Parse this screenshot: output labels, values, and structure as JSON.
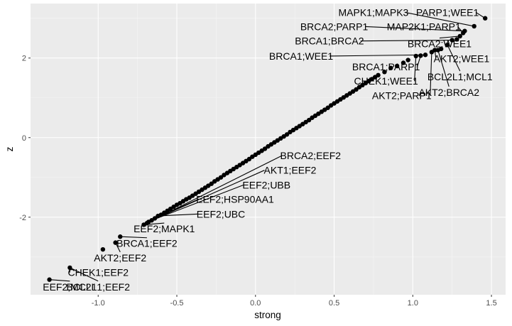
{
  "chart_data": {
    "type": "scatter",
    "xlabel": "strong",
    "ylabel": "z",
    "xlim": [
      -1.43,
      1.59
    ],
    "ylim": [
      -3.95,
      3.37
    ],
    "x_ticks": [
      -1.0,
      -0.5,
      0.0,
      0.5,
      1.0,
      1.5
    ],
    "x_tick_labels": [
      "-1.0",
      "-0.5",
      "0.0",
      "0.5",
      "1.0",
      "1.5"
    ],
    "y_ticks": [
      -2,
      0,
      2
    ],
    "y_tick_labels": [
      "-2",
      "0",
      "2"
    ],
    "grid": true,
    "points": [
      {
        "x": -1.31,
        "y": -3.57
      },
      {
        "x": -1.18,
        "y": -3.27
      },
      {
        "x": -0.97,
        "y": -2.81
      },
      {
        "x": -0.89,
        "y": -2.64
      },
      {
        "x": -0.86,
        "y": -2.49
      },
      {
        "x": -0.71,
        "y": -2.19
      },
      {
        "x": -0.69,
        "y": -2.15
      },
      {
        "x": -0.68,
        "y": -2.12
      },
      {
        "x": -0.66,
        "y": -2.08
      },
      {
        "x": -0.64,
        "y": -2.03
      },
      {
        "x": -0.62,
        "y": -1.97
      },
      {
        "x": -0.6,
        "y": -1.94
      },
      {
        "x": -0.58,
        "y": -1.89
      },
      {
        "x": -0.56,
        "y": -1.84
      },
      {
        "x": -0.54,
        "y": -1.79
      },
      {
        "x": -0.52,
        "y": -1.74
      },
      {
        "x": -0.5,
        "y": -1.69
      },
      {
        "x": -0.48,
        "y": -1.65
      },
      {
        "x": -0.46,
        "y": -1.6
      },
      {
        "x": -0.44,
        "y": -1.55
      },
      {
        "x": -0.42,
        "y": -1.51
      },
      {
        "x": -0.4,
        "y": -1.46
      },
      {
        "x": -0.38,
        "y": -1.41
      },
      {
        "x": -0.36,
        "y": -1.36
      },
      {
        "x": -0.34,
        "y": -1.31
      },
      {
        "x": -0.32,
        "y": -1.26
      },
      {
        "x": -0.3,
        "y": -1.21
      },
      {
        "x": -0.28,
        "y": -1.16
      },
      {
        "x": -0.26,
        "y": -1.1
      },
      {
        "x": -0.24,
        "y": -1.05
      },
      {
        "x": -0.22,
        "y": -1.0
      },
      {
        "x": -0.2,
        "y": -0.94
      },
      {
        "x": -0.18,
        "y": -0.89
      },
      {
        "x": -0.16,
        "y": -0.84
      },
      {
        "x": -0.14,
        "y": -0.79
      },
      {
        "x": -0.12,
        "y": -0.74
      },
      {
        "x": -0.1,
        "y": -0.69
      },
      {
        "x": -0.08,
        "y": -0.64
      },
      {
        "x": -0.06,
        "y": -0.59
      },
      {
        "x": -0.04,
        "y": -0.54
      },
      {
        "x": -0.02,
        "y": -0.48
      },
      {
        "x": 0.0,
        "y": -0.43
      },
      {
        "x": 0.02,
        "y": -0.38
      },
      {
        "x": 0.04,
        "y": -0.33
      },
      {
        "x": 0.06,
        "y": -0.28
      },
      {
        "x": 0.08,
        "y": -0.22
      },
      {
        "x": 0.1,
        "y": -0.17
      },
      {
        "x": 0.12,
        "y": -0.12
      },
      {
        "x": 0.14,
        "y": -0.07
      },
      {
        "x": 0.16,
        "y": -0.02
      },
      {
        "x": 0.18,
        "y": 0.03
      },
      {
        "x": 0.2,
        "y": 0.08
      },
      {
        "x": 0.22,
        "y": 0.14
      },
      {
        "x": 0.24,
        "y": 0.19
      },
      {
        "x": 0.26,
        "y": 0.24
      },
      {
        "x": 0.28,
        "y": 0.29
      },
      {
        "x": 0.3,
        "y": 0.34
      },
      {
        "x": 0.32,
        "y": 0.39
      },
      {
        "x": 0.34,
        "y": 0.44
      },
      {
        "x": 0.36,
        "y": 0.5
      },
      {
        "x": 0.38,
        "y": 0.55
      },
      {
        "x": 0.4,
        "y": 0.6
      },
      {
        "x": 0.42,
        "y": 0.65
      },
      {
        "x": 0.44,
        "y": 0.7
      },
      {
        "x": 0.46,
        "y": 0.75
      },
      {
        "x": 0.48,
        "y": 0.81
      },
      {
        "x": 0.5,
        "y": 0.86
      },
      {
        "x": 0.52,
        "y": 0.91
      },
      {
        "x": 0.54,
        "y": 0.96
      },
      {
        "x": 0.56,
        "y": 1.01
      },
      {
        "x": 0.58,
        "y": 1.06
      },
      {
        "x": 0.6,
        "y": 1.11
      },
      {
        "x": 0.62,
        "y": 1.16
      },
      {
        "x": 0.64,
        "y": 1.21
      },
      {
        "x": 0.66,
        "y": 1.27
      },
      {
        "x": 0.68,
        "y": 1.32
      },
      {
        "x": 0.7,
        "y": 1.37
      },
      {
        "x": 0.72,
        "y": 1.42
      },
      {
        "x": 0.74,
        "y": 1.47
      },
      {
        "x": 0.76,
        "y": 1.52
      },
      {
        "x": 0.78,
        "y": 1.57
      },
      {
        "x": 0.82,
        "y": 1.65
      },
      {
        "x": 0.86,
        "y": 1.75
      },
      {
        "x": 0.9,
        "y": 1.8
      },
      {
        "x": 0.94,
        "y": 1.88
      },
      {
        "x": 0.97,
        "y": 1.95
      },
      {
        "x": 1.02,
        "y": 2.05
      },
      {
        "x": 1.05,
        "y": 2.06
      },
      {
        "x": 1.08,
        "y": 2.08
      },
      {
        "x": 1.12,
        "y": 2.15
      },
      {
        "x": 1.14,
        "y": 2.2
      },
      {
        "x": 1.16,
        "y": 2.2
      },
      {
        "x": 1.18,
        "y": 2.23
      },
      {
        "x": 1.22,
        "y": 2.33
      },
      {
        "x": 1.25,
        "y": 2.45
      },
      {
        "x": 1.28,
        "y": 2.47
      },
      {
        "x": 1.3,
        "y": 2.55
      },
      {
        "x": 1.32,
        "y": 2.63
      },
      {
        "x": 1.33,
        "y": 2.68
      },
      {
        "x": 1.39,
        "y": 2.8
      },
      {
        "x": 1.46,
        "y": 3.0
      }
    ],
    "annotations": [
      {
        "label": "MAPK1;MAPK3",
        "x": 1.39,
        "y": 2.8,
        "lx": 0.75,
        "ly": 3.15
      },
      {
        "label": "PARP1;WEE1",
        "x": 1.46,
        "y": 3.0,
        "lx": 1.22,
        "ly": 3.15
      },
      {
        "label": "BRCA2;PARP1",
        "x": 1.33,
        "y": 2.68,
        "lx": 0.5,
        "ly": 2.79
      },
      {
        "label": "MAP2K1;PARP1",
        "x": 1.32,
        "y": 2.63,
        "lx": 1.07,
        "ly": 2.79
      },
      {
        "label": "BRCA1;BRCA2",
        "x": 1.25,
        "y": 2.45,
        "lx": 0.47,
        "ly": 2.43
      },
      {
        "label": "BRCA2;WEE1",
        "x": 1.3,
        "y": 2.55,
        "lx": 1.17,
        "ly": 2.36
      },
      {
        "label": "BRCA1;WEE1",
        "x": 1.08,
        "y": 2.08,
        "lx": 0.29,
        "ly": 2.05
      },
      {
        "label": "AKT2;WEE1",
        "x": 1.14,
        "y": 2.2,
        "lx": 1.31,
        "ly": 1.99
      },
      {
        "label": "BRCA1;PARP1",
        "x": 1.05,
        "y": 2.06,
        "lx": 0.83,
        "ly": 1.78
      },
      {
        "label": "BCL2L1;MCL1",
        "x": 1.22,
        "y": 2.33,
        "lx": 1.3,
        "ly": 1.53
      },
      {
        "label": "CHEK1;WEE1",
        "x": 1.02,
        "y": 2.05,
        "lx": 0.83,
        "ly": 1.42
      },
      {
        "label": "AKT2;PARP1",
        "x": 1.12,
        "y": 2.15,
        "lx": 0.93,
        "ly": 1.06
      },
      {
        "label": "AKT2;BRCA2",
        "x": 1.16,
        "y": 2.2,
        "lx": 1.23,
        "ly": 1.14
      },
      {
        "label": "BRCA2;EEF2",
        "x": -0.69,
        "y": -2.15,
        "lx": 0.35,
        "ly": -0.45
      },
      {
        "label": "AKT1;EEF2",
        "x": -0.68,
        "y": -2.12,
        "lx": 0.22,
        "ly": -0.82
      },
      {
        "label": "EEF2;UBB",
        "x": -0.66,
        "y": -2.08,
        "lx": 0.07,
        "ly": -1.19
      },
      {
        "label": "EEF2;HSP90AA1",
        "x": -0.64,
        "y": -2.03,
        "lx": -0.13,
        "ly": -1.55
      },
      {
        "label": "EEF2;UBC",
        "x": -0.62,
        "y": -1.97,
        "lx": -0.22,
        "ly": -1.92
      },
      {
        "label": "EEF2;MAPK1",
        "x": -0.71,
        "y": -2.19,
        "lx": -0.58,
        "ly": -2.29
      },
      {
        "label": "BRCA1;EEF2",
        "x": -0.86,
        "y": -2.49,
        "lx": -0.69,
        "ly": -2.66
      },
      {
        "label": "AKT2;EEF2",
        "x": -0.89,
        "y": -2.64,
        "lx": -0.86,
        "ly": -3.02
      },
      {
        "label": "CHEK1;EEF2",
        "x": -1.18,
        "y": -3.27,
        "lx": -1.0,
        "ly": -3.39
      },
      {
        "label": "BCL2L1;EEF2",
        "x": -1.18,
        "y": -3.27,
        "lx": -1.0,
        "ly": -3.75
      },
      {
        "label": "EEF2;MCL1",
        "x": -1.31,
        "y": -3.57,
        "lx": -1.18,
        "ly": -3.75
      }
    ]
  }
}
